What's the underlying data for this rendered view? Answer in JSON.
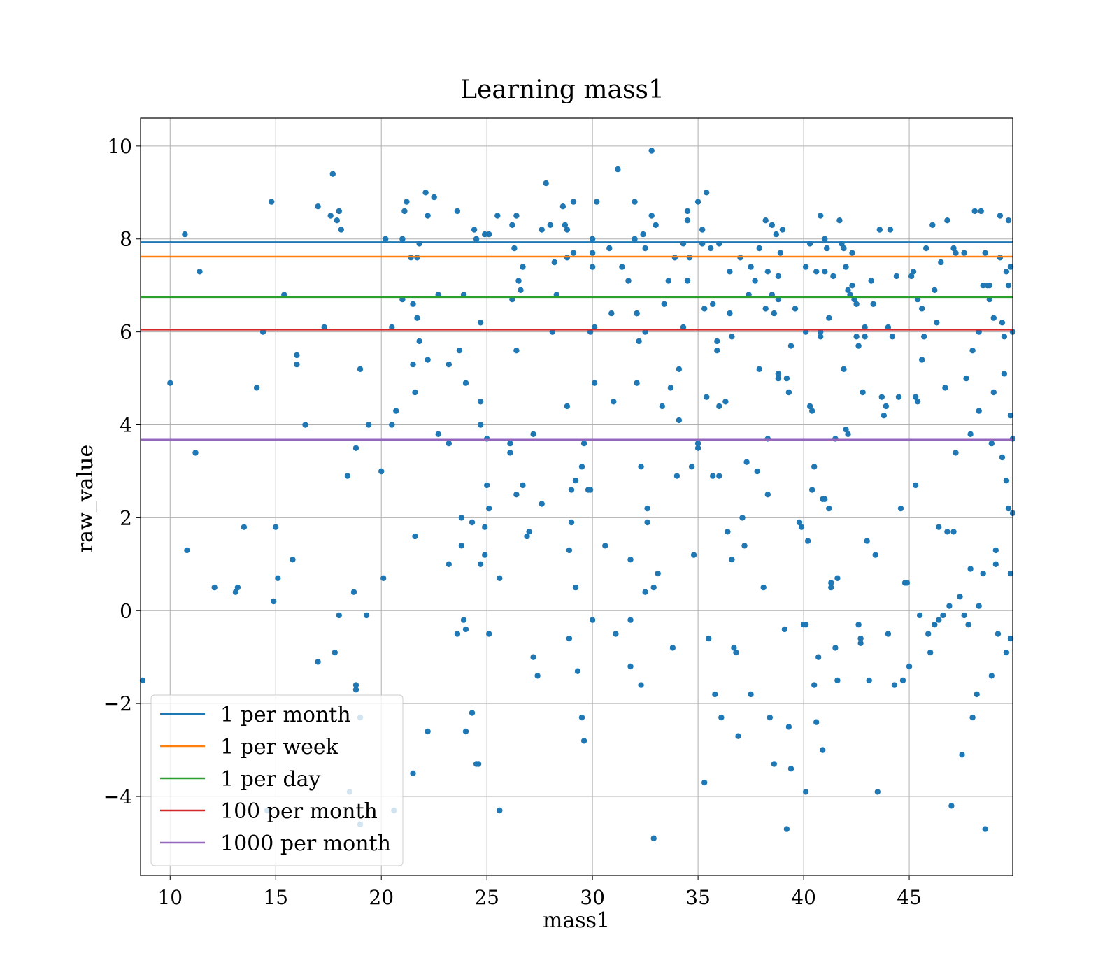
{
  "chart_data": {
    "type": "scatter",
    "title": "Learning mass1",
    "xlabel": "mass1",
    "ylabel": "raw_value",
    "xlim": [
      8.6,
      49.9
    ],
    "ylim": [
      -5.7,
      10.6
    ],
    "xticks": [
      10,
      15,
      20,
      25,
      30,
      35,
      40,
      45
    ],
    "yticks": [
      -4,
      -2,
      0,
      2,
      4,
      6,
      8,
      10
    ],
    "xtick_labels": [
      "10",
      "15",
      "20",
      "25",
      "30",
      "35",
      "40",
      "45"
    ],
    "ytick_labels": [
      "−4",
      "−2",
      "0",
      "2",
      "4",
      "6",
      "8",
      "10"
    ],
    "grid": true,
    "legend_position": "lower-left",
    "scatter_color": "#1f77b4",
    "points": [
      [
        8.7,
        -1.5
      ],
      [
        10.0,
        4.9
      ],
      [
        10.7,
        8.1
      ],
      [
        10.8,
        1.3
      ],
      [
        11.2,
        3.4
      ],
      [
        11.4,
        7.3
      ],
      [
        12.1,
        0.5
      ],
      [
        13.1,
        0.4
      ],
      [
        13.2,
        0.5
      ],
      [
        13.5,
        1.8
      ],
      [
        14.1,
        4.8
      ],
      [
        14.4,
        6.0
      ],
      [
        14.6,
        -4.3
      ],
      [
        14.8,
        8.8
      ],
      [
        14.9,
        0.2
      ],
      [
        15.0,
        1.8
      ],
      [
        15.1,
        0.7
      ],
      [
        15.4,
        6.8
      ],
      [
        15.8,
        1.1
      ],
      [
        16.0,
        5.3
      ],
      [
        16.0,
        5.5
      ],
      [
        16.4,
        4.0
      ],
      [
        17.0,
        8.7
      ],
      [
        17.0,
        -1.1
      ],
      [
        17.3,
        6.1
      ],
      [
        17.6,
        8.5
      ],
      [
        17.7,
        9.4
      ],
      [
        17.8,
        -0.9
      ],
      [
        17.9,
        8.4
      ],
      [
        18.0,
        8.6
      ],
      [
        18.0,
        -0.1
      ],
      [
        18.1,
        8.2
      ],
      [
        18.4,
        2.9
      ],
      [
        18.5,
        -3.9
      ],
      [
        18.7,
        0.4
      ],
      [
        18.8,
        3.5
      ],
      [
        18.8,
        -1.6
      ],
      [
        18.8,
        -1.7
      ],
      [
        19.0,
        -2.3
      ],
      [
        19.0,
        -4.6
      ],
      [
        19.0,
        5.2
      ],
      [
        19.3,
        -0.1
      ],
      [
        19.4,
        4.0
      ],
      [
        20.0,
        3.0
      ],
      [
        20.1,
        0.7
      ],
      [
        20.2,
        8.0
      ],
      [
        20.5,
        6.1
      ],
      [
        20.5,
        4.0
      ],
      [
        20.6,
        -4.3
      ],
      [
        20.7,
        4.3
      ],
      [
        21.0,
        8.0
      ],
      [
        21.0,
        6.7
      ],
      [
        21.1,
        8.6
      ],
      [
        21.2,
        8.8
      ],
      [
        21.4,
        7.6
      ],
      [
        21.5,
        6.6
      ],
      [
        21.5,
        5.3
      ],
      [
        21.5,
        -3.5
      ],
      [
        21.6,
        4.7
      ],
      [
        21.6,
        1.6
      ],
      [
        21.7,
        7.6
      ],
      [
        21.7,
        6.3
      ],
      [
        21.8,
        7.9
      ],
      [
        21.8,
        5.8
      ],
      [
        22.1,
        9.0
      ],
      [
        22.2,
        8.5
      ],
      [
        22.2,
        5.4
      ],
      [
        22.2,
        -2.6
      ],
      [
        22.5,
        8.9
      ],
      [
        22.7,
        6.8
      ],
      [
        22.7,
        3.8
      ],
      [
        23.2,
        5.3
      ],
      [
        23.2,
        3.6
      ],
      [
        23.2,
        1.0
      ],
      [
        23.6,
        8.6
      ],
      [
        23.6,
        -0.5
      ],
      [
        23.7,
        5.6
      ],
      [
        23.8,
        2.0
      ],
      [
        23.8,
        1.4
      ],
      [
        23.9,
        6.8
      ],
      [
        23.9,
        -0.2
      ],
      [
        24.0,
        4.9
      ],
      [
        24.0,
        -0.4
      ],
      [
        24.0,
        -2.6
      ],
      [
        24.3,
        1.9
      ],
      [
        24.3,
        -2.2
      ],
      [
        24.4,
        8.2
      ],
      [
        24.5,
        8.0
      ],
      [
        24.5,
        -3.3
      ],
      [
        24.6,
        -3.3
      ],
      [
        24.7,
        6.2
      ],
      [
        24.7,
        4.5
      ],
      [
        24.7,
        4.0
      ],
      [
        24.7,
        1.0
      ],
      [
        24.9,
        8.1
      ],
      [
        24.9,
        1.8
      ],
      [
        24.9,
        1.2
      ],
      [
        25.0,
        3.7
      ],
      [
        25.0,
        2.7
      ],
      [
        25.1,
        8.1
      ],
      [
        25.1,
        2.2
      ],
      [
        25.1,
        -0.5
      ],
      [
        25.5,
        8.5
      ],
      [
        25.6,
        0.7
      ],
      [
        25.6,
        -4.3
      ],
      [
        26.1,
        3.6
      ],
      [
        26.1,
        3.4
      ],
      [
        26.2,
        8.3
      ],
      [
        26.2,
        6.7
      ],
      [
        26.3,
        7.8
      ],
      [
        26.4,
        8.5
      ],
      [
        26.4,
        5.6
      ],
      [
        26.4,
        2.5
      ],
      [
        26.5,
        7.1
      ],
      [
        26.6,
        6.9
      ],
      [
        26.7,
        7.4
      ],
      [
        26.7,
        2.7
      ],
      [
        26.9,
        1.6
      ],
      [
        27.0,
        1.7
      ],
      [
        27.2,
        3.8
      ],
      [
        27.2,
        -1.0
      ],
      [
        27.4,
        -1.4
      ],
      [
        27.6,
        8.2
      ],
      [
        27.6,
        2.3
      ],
      [
        27.8,
        9.2
      ],
      [
        28.0,
        8.3
      ],
      [
        28.1,
        6.0
      ],
      [
        28.2,
        7.5
      ],
      [
        28.3,
        6.8
      ],
      [
        28.6,
        8.7
      ],
      [
        28.7,
        8.3
      ],
      [
        28.8,
        8.2
      ],
      [
        28.8,
        7.6
      ],
      [
        28.8,
        4.4
      ],
      [
        28.9,
        -0.6
      ],
      [
        28.9,
        1.3
      ],
      [
        29.0,
        1.9
      ],
      [
        29.0,
        2.6
      ],
      [
        29.1,
        8.8
      ],
      [
        29.1,
        7.7
      ],
      [
        29.2,
        2.8
      ],
      [
        29.2,
        0.5
      ],
      [
        29.3,
        -1.3
      ],
      [
        29.5,
        3.1
      ],
      [
        29.5,
        -2.3
      ],
      [
        29.6,
        3.6
      ],
      [
        29.6,
        -2.8
      ],
      [
        29.8,
        2.6
      ],
      [
        29.9,
        2.6
      ],
      [
        29.9,
        6.0
      ],
      [
        30.0,
        7.7
      ],
      [
        30.0,
        7.4
      ],
      [
        30.0,
        -0.2
      ],
      [
        30.0,
        8.0
      ],
      [
        30.1,
        4.9
      ],
      [
        30.1,
        6.1
      ],
      [
        30.2,
        8.8
      ],
      [
        30.6,
        1.4
      ],
      [
        30.8,
        7.8
      ],
      [
        30.9,
        6.4
      ],
      [
        31.0,
        4.5
      ],
      [
        31.1,
        -0.5
      ],
      [
        31.2,
        9.5
      ],
      [
        31.4,
        7.4
      ],
      [
        31.7,
        7.1
      ],
      [
        31.8,
        1.1
      ],
      [
        31.8,
        -0.2
      ],
      [
        31.8,
        -1.2
      ],
      [
        32.0,
        8.8
      ],
      [
        32.0,
        8.0
      ],
      [
        32.1,
        6.4
      ],
      [
        32.1,
        6.4
      ],
      [
        32.1,
        4.9
      ],
      [
        32.2,
        5.8
      ],
      [
        32.3,
        3.1
      ],
      [
        32.3,
        -1.6
      ],
      [
        32.4,
        8.1
      ],
      [
        32.5,
        7.8
      ],
      [
        32.5,
        6.0
      ],
      [
        32.5,
        0.4
      ],
      [
        32.6,
        2.2
      ],
      [
        32.6,
        1.9
      ],
      [
        32.8,
        9.9
      ],
      [
        32.8,
        8.5
      ],
      [
        32.9,
        0.5
      ],
      [
        32.9,
        -4.9
      ],
      [
        33.0,
        8.3
      ],
      [
        33.1,
        0.8
      ],
      [
        33.3,
        4.4
      ],
      [
        33.4,
        6.6
      ],
      [
        33.6,
        7.1
      ],
      [
        33.7,
        4.8
      ],
      [
        33.8,
        -0.8
      ],
      [
        33.9,
        7.6
      ],
      [
        34.0,
        2.9
      ],
      [
        34.1,
        5.2
      ],
      [
        34.1,
        4.1
      ],
      [
        34.3,
        7.9
      ],
      [
        34.3,
        6.1
      ],
      [
        34.5,
        8.6
      ],
      [
        34.5,
        8.4
      ],
      [
        34.5,
        7.1
      ],
      [
        34.6,
        7.6
      ],
      [
        34.7,
        3.1
      ],
      [
        34.8,
        1.2
      ],
      [
        35.0,
        8.8
      ],
      [
        35.0,
        3.5
      ],
      [
        35.0,
        3.6
      ],
      [
        35.2,
        8.2
      ],
      [
        35.2,
        7.9
      ],
      [
        35.3,
        6.5
      ],
      [
        35.3,
        -3.7
      ],
      [
        35.4,
        9.0
      ],
      [
        35.4,
        4.6
      ],
      [
        35.5,
        -0.6
      ],
      [
        35.6,
        7.8
      ],
      [
        35.7,
        6.6
      ],
      [
        35.7,
        2.9
      ],
      [
        35.8,
        -1.8
      ],
      [
        35.9,
        5.8
      ],
      [
        35.9,
        5.6
      ],
      [
        36.0,
        2.9
      ],
      [
        36.0,
        7.9
      ],
      [
        36.0,
        4.4
      ],
      [
        36.1,
        -2.3
      ],
      [
        36.3,
        4.5
      ],
      [
        36.4,
        1.7
      ],
      [
        36.5,
        7.3
      ],
      [
        36.5,
        6.4
      ],
      [
        36.6,
        1.1
      ],
      [
        36.6,
        5.9
      ],
      [
        36.7,
        -0.8
      ],
      [
        36.8,
        -0.9
      ],
      [
        36.9,
        -2.7
      ],
      [
        37.0,
        7.6
      ],
      [
        37.1,
        2.0
      ],
      [
        37.2,
        1.4
      ],
      [
        37.3,
        3.2
      ],
      [
        37.4,
        6.8
      ],
      [
        37.5,
        7.4
      ],
      [
        37.5,
        -1.8
      ],
      [
        37.7,
        7.1
      ],
      [
        37.8,
        3.0
      ],
      [
        37.9,
        5.2
      ],
      [
        37.9,
        7.8
      ],
      [
        38.1,
        0.5
      ],
      [
        38.2,
        8.4
      ],
      [
        38.2,
        6.5
      ],
      [
        38.3,
        7.3
      ],
      [
        38.3,
        2.5
      ],
      [
        38.3,
        3.7
      ],
      [
        38.4,
        -2.3
      ],
      [
        38.5,
        6.8
      ],
      [
        38.5,
        8.3
      ],
      [
        38.6,
        -3.3
      ],
      [
        38.6,
        6.4
      ],
      [
        38.7,
        8.1
      ],
      [
        38.8,
        7.2
      ],
      [
        38.8,
        6.7
      ],
      [
        38.8,
        5.1
      ],
      [
        38.8,
        5.0
      ],
      [
        38.9,
        7.7
      ],
      [
        39.0,
        8.2
      ],
      [
        39.1,
        -0.4
      ],
      [
        39.2,
        -4.7
      ],
      [
        39.2,
        5.0
      ],
      [
        39.3,
        4.7
      ],
      [
        39.3,
        -2.5
      ],
      [
        39.4,
        5.7
      ],
      [
        39.4,
        -3.4
      ],
      [
        39.6,
        6.5
      ],
      [
        39.8,
        1.9
      ],
      [
        39.9,
        1.8
      ],
      [
        40.0,
        -0.3
      ],
      [
        40.1,
        -0.3
      ],
      [
        40.1,
        6.0
      ],
      [
        40.1,
        7.4
      ],
      [
        40.1,
        -3.9
      ],
      [
        40.2,
        1.5
      ],
      [
        40.3,
        7.9
      ],
      [
        40.3,
        4.4
      ],
      [
        40.4,
        4.3
      ],
      [
        40.4,
        2.6
      ],
      [
        40.5,
        3.1
      ],
      [
        40.5,
        -1.6
      ],
      [
        40.6,
        7.3
      ],
      [
        40.6,
        -2.4
      ],
      [
        40.7,
        -1.0
      ],
      [
        40.8,
        6.0
      ],
      [
        40.8,
        5.9
      ],
      [
        40.8,
        8.5
      ],
      [
        40.9,
        -3.0
      ],
      [
        40.9,
        2.4
      ],
      [
        41.0,
        2.4
      ],
      [
        41.0,
        7.3
      ],
      [
        41.0,
        8.0
      ],
      [
        41.1,
        7.8
      ],
      [
        41.1,
        7.8
      ],
      [
        41.2,
        6.3
      ],
      [
        41.2,
        2.2
      ],
      [
        41.3,
        0.5
      ],
      [
        41.3,
        0.6
      ],
      [
        41.4,
        7.2
      ],
      [
        41.5,
        3.7
      ],
      [
        41.5,
        -0.8
      ],
      [
        41.6,
        -1.5
      ],
      [
        41.6,
        0.7
      ],
      [
        41.7,
        8.4
      ],
      [
        41.8,
        7.9
      ],
      [
        41.8,
        7.9
      ],
      [
        41.9,
        7.8
      ],
      [
        41.9,
        5.2
      ],
      [
        42.0,
        3.9
      ],
      [
        42.0,
        7.4
      ],
      [
        42.1,
        3.8
      ],
      [
        42.1,
        6.9
      ],
      [
        42.2,
        6.8
      ],
      [
        42.3,
        7.0
      ],
      [
        42.3,
        7.7
      ],
      [
        42.4,
        6.7
      ],
      [
        42.5,
        6.6
      ],
      [
        42.5,
        5.9
      ],
      [
        42.6,
        5.7
      ],
      [
        42.6,
        -0.3
      ],
      [
        42.7,
        -0.6
      ],
      [
        42.7,
        -0.7
      ],
      [
        42.8,
        4.7
      ],
      [
        42.9,
        5.9
      ],
      [
        42.9,
        6.1
      ],
      [
        43.0,
        1.5
      ],
      [
        43.1,
        -1.5
      ],
      [
        43.2,
        7.1
      ],
      [
        43.3,
        6.6
      ],
      [
        43.4,
        1.2
      ],
      [
        43.5,
        -3.9
      ],
      [
        43.6,
        8.2
      ],
      [
        43.7,
        4.6
      ],
      [
        43.8,
        4.2
      ],
      [
        43.9,
        4.4
      ],
      [
        44.0,
        6.1
      ],
      [
        44.0,
        -0.5
      ],
      [
        44.1,
        8.2
      ],
      [
        44.2,
        5.9
      ],
      [
        44.3,
        -1.6
      ],
      [
        44.4,
        7.2
      ],
      [
        44.5,
        4.6
      ],
      [
        44.6,
        2.2
      ],
      [
        44.7,
        -1.5
      ],
      [
        44.8,
        0.6
      ],
      [
        44.9,
        0.6
      ],
      [
        45.0,
        -1.2
      ],
      [
        45.1,
        7.2
      ],
      [
        45.2,
        7.3
      ],
      [
        45.3,
        2.7
      ],
      [
        45.3,
        4.6
      ],
      [
        45.4,
        6.7
      ],
      [
        45.4,
        4.5
      ],
      [
        45.5,
        -0.1
      ],
      [
        45.6,
        6.5
      ],
      [
        45.6,
        5.4
      ],
      [
        45.7,
        5.9
      ],
      [
        45.8,
        7.8
      ],
      [
        45.9,
        -0.5
      ],
      [
        46.0,
        -0.9
      ],
      [
        46.1,
        8.3
      ],
      [
        46.2,
        -0.3
      ],
      [
        46.2,
        6.9
      ],
      [
        46.3,
        6.2
      ],
      [
        46.4,
        -0.2
      ],
      [
        46.4,
        1.8
      ],
      [
        46.5,
        7.5
      ],
      [
        46.6,
        -0.1
      ],
      [
        46.7,
        4.8
      ],
      [
        46.8,
        8.4
      ],
      [
        46.8,
        1.7
      ],
      [
        46.9,
        0.1
      ],
      [
        47.0,
        -4.2
      ],
      [
        47.1,
        1.7
      ],
      [
        47.1,
        7.8
      ],
      [
        47.2,
        7.7
      ],
      [
        47.2,
        3.4
      ],
      [
        47.4,
        0.3
      ],
      [
        47.5,
        -3.1
      ],
      [
        47.6,
        -0.1
      ],
      [
        47.6,
        7.7
      ],
      [
        47.7,
        5.0
      ],
      [
        47.8,
        -0.3
      ],
      [
        47.9,
        3.8
      ],
      [
        47.9,
        0.9
      ],
      [
        48.0,
        -2.3
      ],
      [
        48.0,
        5.6
      ],
      [
        48.1,
        8.6
      ],
      [
        48.2,
        -1.8
      ],
      [
        48.3,
        0.1
      ],
      [
        48.3,
        4.3
      ],
      [
        48.3,
        6.0
      ],
      [
        48.4,
        8.6
      ],
      [
        48.5,
        0.8
      ],
      [
        48.5,
        7.0
      ],
      [
        48.6,
        7.7
      ],
      [
        48.6,
        -4.7
      ],
      [
        48.7,
        7.0
      ],
      [
        48.8,
        6.7
      ],
      [
        48.8,
        7.0
      ],
      [
        48.9,
        -1.4
      ],
      [
        48.9,
        3.6
      ],
      [
        49.0,
        6.3
      ],
      [
        49.0,
        4.7
      ],
      [
        49.1,
        1.0
      ],
      [
        49.1,
        1.3
      ],
      [
        49.2,
        -0.5
      ],
      [
        49.3,
        8.5
      ],
      [
        49.3,
        7.6
      ],
      [
        49.4,
        3.3
      ],
      [
        49.4,
        6.2
      ],
      [
        49.5,
        5.9
      ],
      [
        49.5,
        5.1
      ],
      [
        49.6,
        7.3
      ],
      [
        49.6,
        -0.9
      ],
      [
        49.7,
        2.2
      ],
      [
        49.7,
        7.0
      ],
      [
        49.8,
        4.2
      ],
      [
        49.8,
        -0.6
      ],
      [
        49.9,
        3.7
      ],
      [
        49.9,
        6.0
      ],
      [
        49.8,
        0.8
      ],
      [
        49.9,
        2.1
      ],
      [
        49.8,
        7.4
      ],
      [
        49.7,
        8.4
      ],
      [
        49.6,
        2.8
      ]
    ],
    "hlines": [
      {
        "name": "1 per month",
        "y": 7.93,
        "color": "#1f77b4"
      },
      {
        "name": "1 per week",
        "y": 7.62,
        "color": "#ff7f0e"
      },
      {
        "name": "1 per day",
        "y": 6.75,
        "color": "#2ca02c"
      },
      {
        "name": "100 per month",
        "y": 6.05,
        "color": "#d62728"
      },
      {
        "name": "1000 per month",
        "y": 3.68,
        "color": "#9467bd"
      }
    ]
  }
}
